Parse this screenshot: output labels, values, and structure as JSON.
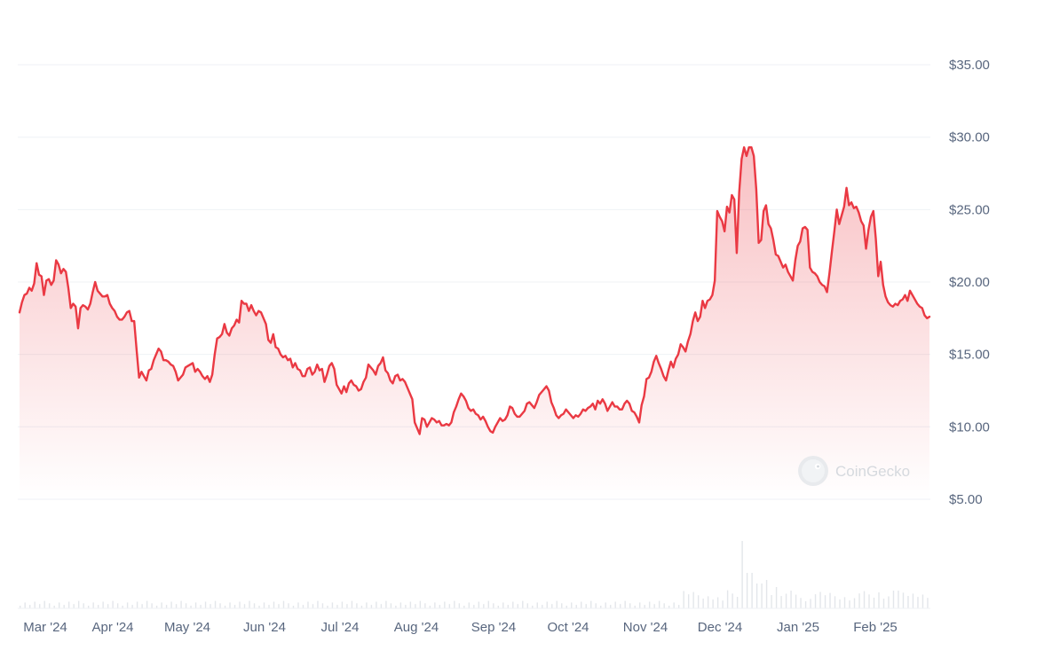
{
  "chart_data": {
    "type": "area",
    "series": [
      {
        "values": [
          17.9,
          18.6,
          19.1,
          19.2,
          19.6,
          19.4,
          19.9,
          21.3,
          20.5,
          20.4,
          19.1,
          20.1,
          20.2,
          19.8,
          20.1,
          21.5,
          21.2,
          20.6,
          20.9,
          20.7,
          19.6,
          18.2,
          18.5,
          18.3,
          16.8,
          18.2,
          18.4,
          18.3,
          18.1,
          18.5,
          19.3,
          20.0,
          19.4,
          19.2,
          19.0,
          19.0,
          19.1,
          18.5,
          18.2,
          18.0,
          17.6,
          17.4,
          17.4,
          17.6,
          17.9,
          18.0,
          17.3,
          17.3,
          15.3,
          13.4,
          13.8,
          13.5,
          13.2,
          13.9,
          14.0,
          14.6,
          15.0,
          15.4,
          15.2,
          14.6,
          14.6,
          14.5,
          14.3,
          14.2,
          13.8,
          13.2,
          13.4,
          13.6,
          14.1,
          14.2,
          14.3,
          14.4,
          13.8,
          14.0,
          13.8,
          13.5,
          13.3,
          13.5,
          13.1,
          13.6,
          15.0,
          16.1,
          16.2,
          16.4,
          17.1,
          16.5,
          16.3,
          16.8,
          17.0,
          17.4,
          17.2,
          18.7,
          18.5,
          18.5,
          18.0,
          18.4,
          18.0,
          17.7,
          18.0,
          17.9,
          17.5,
          17.1,
          16.0,
          15.8,
          16.4,
          15.5,
          15.4,
          15.0,
          14.8,
          14.9,
          14.6,
          14.7,
          14.1,
          14.4,
          14.0,
          13.9,
          13.5,
          13.5,
          14.0,
          14.1,
          13.6,
          13.8,
          14.3,
          13.9,
          14.0,
          13.1,
          13.6,
          14.2,
          14.4,
          14.0,
          12.9,
          12.6,
          12.3,
          12.8,
          12.4,
          13.0,
          13.2,
          12.9,
          12.8,
          12.5,
          12.6,
          13.1,
          13.4,
          14.3,
          14.1,
          13.9,
          13.6,
          14.2,
          14.4,
          14.8,
          13.9,
          13.7,
          13.2,
          13.0,
          13.5,
          13.6,
          13.2,
          13.3,
          13.1,
          12.7,
          12.3,
          11.9,
          10.3,
          9.9,
          9.5,
          10.6,
          10.5,
          10.0,
          10.3,
          10.6,
          10.5,
          10.3,
          10.4,
          10.1,
          10.1,
          10.2,
          10.1,
          10.3,
          11.0,
          11.4,
          11.9,
          12.3,
          12.1,
          11.8,
          11.3,
          11.1,
          11.2,
          10.9,
          10.8,
          10.5,
          10.7,
          10.4,
          10.0,
          9.7,
          9.6,
          10.0,
          10.3,
          10.6,
          10.4,
          10.5,
          10.8,
          11.4,
          11.3,
          10.9,
          10.7,
          10.7,
          10.9,
          11.1,
          11.6,
          11.7,
          11.5,
          11.3,
          11.7,
          12.2,
          12.4,
          12.6,
          12.8,
          12.5,
          11.7,
          11.3,
          10.8,
          10.6,
          10.8,
          10.9,
          11.2,
          11.0,
          10.8,
          10.6,
          10.8,
          10.7,
          10.9,
          11.2,
          11.1,
          11.3,
          11.4,
          11.6,
          11.2,
          11.8,
          11.6,
          11.9,
          11.6,
          11.1,
          11.4,
          11.7,
          11.4,
          11.4,
          11.2,
          11.2,
          11.6,
          11.8,
          11.6,
          11.1,
          11.0,
          10.7,
          10.3,
          11.5,
          12.1,
          13.3,
          13.4,
          13.8,
          14.5,
          14.9,
          14.4,
          14.0,
          13.5,
          13.2,
          13.9,
          14.5,
          14.1,
          14.7,
          15.0,
          15.7,
          15.5,
          15.2,
          15.9,
          16.4,
          17.3,
          17.9,
          17.3,
          17.6,
          18.7,
          18.2,
          18.7,
          18.8,
          19.1,
          20.1,
          24.9,
          24.5,
          24.2,
          23.5,
          25.2,
          24.8,
          26.0,
          25.7,
          22.0,
          26.2,
          28.5,
          29.3,
          28.7,
          29.3,
          29.3,
          28.7,
          26.4,
          22.7,
          22.9,
          24.9,
          25.3,
          24.0,
          23.7,
          22.9,
          21.9,
          21.8,
          21.4,
          21.0,
          21.2,
          20.7,
          20.4,
          20.1,
          21.5,
          22.5,
          22.8,
          23.7,
          23.8,
          23.6,
          21.0,
          20.7,
          20.6,
          20.4,
          20.0,
          19.8,
          19.7,
          19.3,
          20.6,
          22.1,
          23.5,
          25.0,
          24.0,
          24.6,
          25.2,
          26.5,
          25.3,
          25.5,
          25.1,
          25.2,
          24.8,
          24.2,
          23.9,
          22.3,
          23.6,
          24.5,
          24.9,
          23.0,
          20.4,
          21.4,
          19.8,
          19.0,
          18.6,
          18.4,
          18.3,
          18.5,
          18.4,
          18.7,
          18.8,
          19.1,
          18.7,
          19.4,
          19.1,
          18.8,
          18.5,
          18.3,
          18.2,
          17.7,
          17.5,
          17.6
        ]
      }
    ],
    "x_ticks": [
      "Mar '24",
      "Apr '24",
      "May '24",
      "Jun '24",
      "Jul '24",
      "Aug '24",
      "Sep '24",
      "Oct '24",
      "Nov '24",
      "Dec '24",
      "Jan '25",
      "Feb '25"
    ],
    "y_ticks": [
      "$5.00",
      "$10.00",
      "$15.00",
      "$20.00",
      "$25.00",
      "$30.00",
      "$35.00"
    ],
    "y_tick_values": [
      5,
      10,
      15,
      20,
      25,
      30,
      35
    ],
    "ylim": [
      5,
      35
    ],
    "grid": true,
    "line_color": "#ea3943",
    "fill_color": "#ea3943",
    "volume_bars": true
  },
  "watermark": {
    "text": "CoinGecko",
    "icon": "gecko-logo-icon"
  }
}
